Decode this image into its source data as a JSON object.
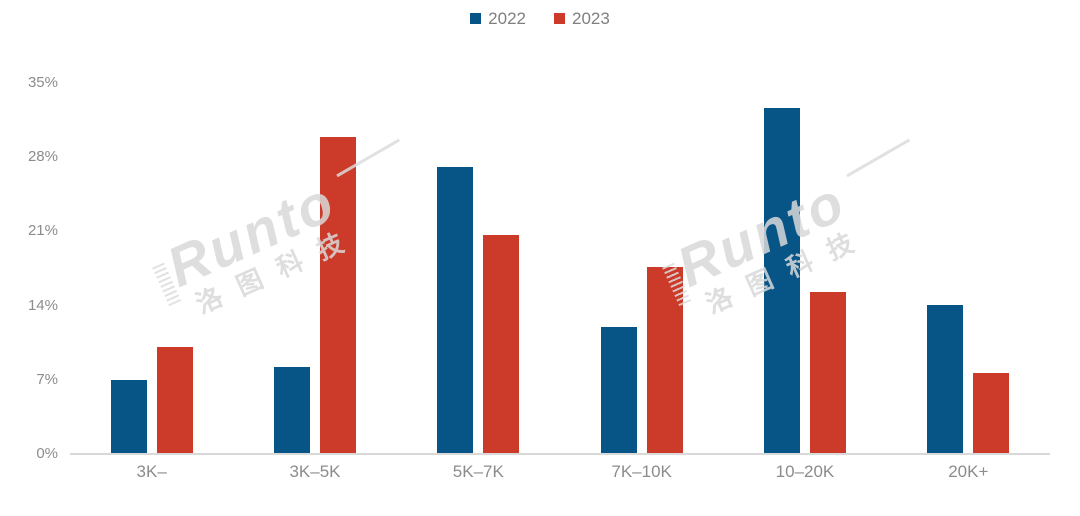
{
  "chart_data": {
    "type": "bar",
    "title": "",
    "xlabel": "",
    "ylabel": "",
    "categories": [
      "3K–",
      "3K–5K",
      "5K–7K",
      "7K–10K",
      "10–20K",
      "20K+"
    ],
    "series": [
      {
        "name": "2022",
        "color": "#075586",
        "values": [
          6.9,
          8.1,
          27.0,
          11.9,
          32.5,
          14.0
        ]
      },
      {
        "name": "2023",
        "color": "#CC3A29",
        "values": [
          10.0,
          29.8,
          20.6,
          17.5,
          15.2,
          7.5
        ]
      }
    ],
    "unit": "%",
    "ylim": [
      0,
      35
    ],
    "y_ticks": [
      "0%",
      "7%",
      "14%",
      "21%",
      "28%",
      "35%"
    ],
    "y_tick_values": [
      0,
      7,
      14,
      21,
      28,
      35
    ],
    "grid": false,
    "legend_position": "top-center"
  },
  "watermark": {
    "brand": "Runto",
    "cn": "洛图科技"
  },
  "colors": {
    "background": "#ffffff",
    "axis_line": "#d9d9d9",
    "tick_text": "#8c8c8c",
    "legend_text": "#7f7f7f",
    "watermark": "#d9d9d9",
    "series_2022": "#075586",
    "series_2023": "#CC3A29"
  }
}
